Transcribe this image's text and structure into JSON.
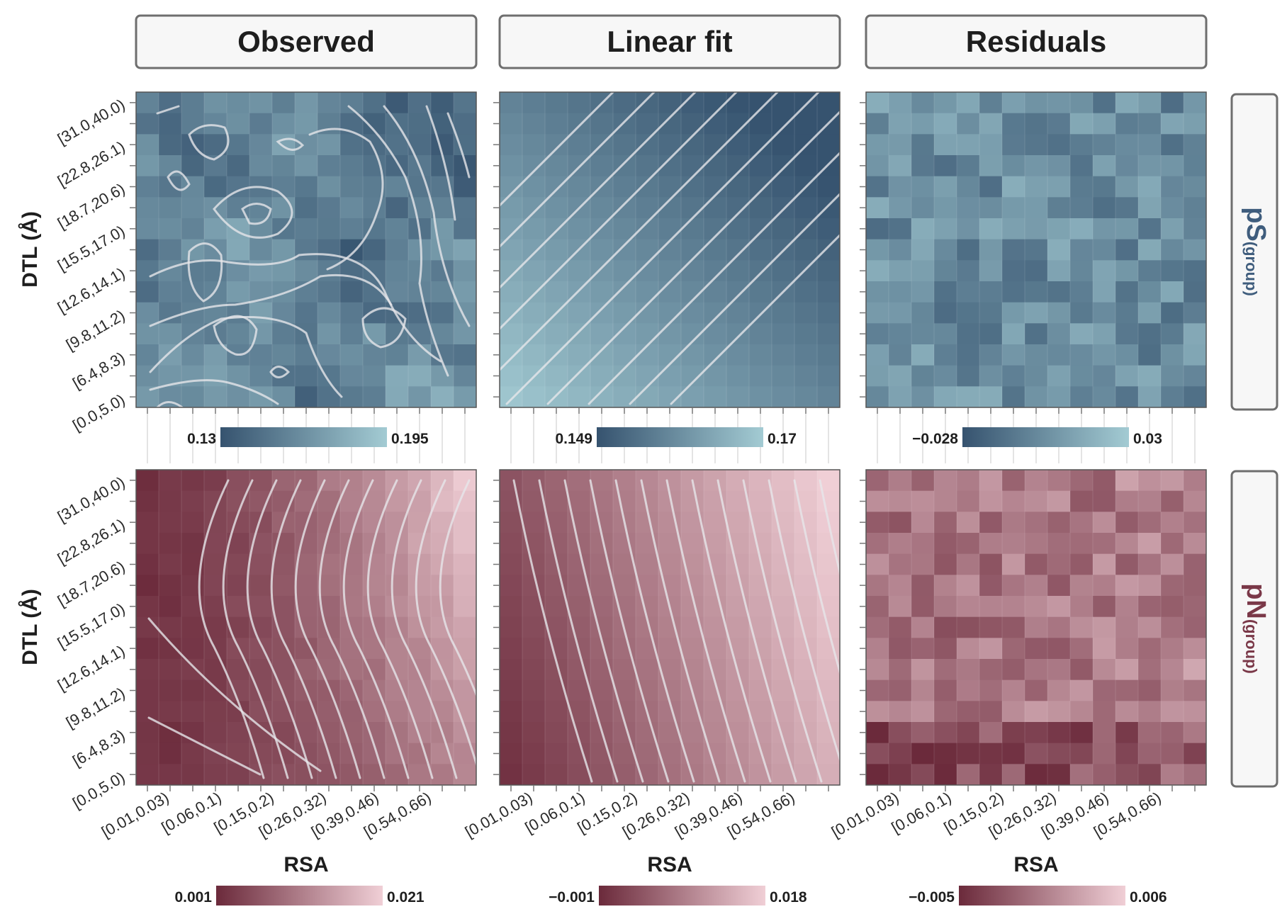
{
  "figure": {
    "column_titles": [
      "Observed",
      "Linear fit",
      "Residuals"
    ],
    "row_labels": [
      {
        "main": "pS",
        "sub": "(group)",
        "color": "#3f5d7d"
      },
      {
        "main": "pN",
        "sub": "(group)",
        "color": "#7a3848"
      }
    ],
    "ylabel": "DTL (Å)",
    "xlabel": "RSA",
    "y_ticks": [
      "[31.0,40.0)",
      "[22.8,26.1)",
      "[18.7,20.6)",
      "[15.5,17.0)",
      "[12.6,14.1)",
      "[9.8,11.2)",
      "[6.4,8.3)",
      "[0.0,5.0)"
    ],
    "x_ticks": [
      "[0.01,0.03)",
      "[0.06,0.1)",
      "[0.15,0.2)",
      "[0.26,0.32)",
      "[0.39,0.46)",
      "[0.54,0.66)"
    ],
    "colorbars": [
      {
        "min": "0.13",
        "max": "0.195"
      },
      {
        "min": "0.149",
        "max": "0.17"
      },
      {
        "min": "−0.028",
        "max": "0.03"
      },
      {
        "min": "0.001",
        "max": "0.021"
      },
      {
        "min": "−0.001",
        "max": "0.018"
      },
      {
        "min": "−0.005",
        "max": "0.006"
      }
    ],
    "palettes": {
      "blue": {
        "low": "#36536f",
        "high": "#a3cbd3"
      },
      "red": {
        "low": "#6b2a3b",
        "high": "#f0cfd6"
      }
    }
  },
  "chart_data": [
    {
      "type": "heatmap",
      "title": "Observed",
      "row": "pS(group)",
      "xlabel": "RSA",
      "ylabel": "DTL (Å)",
      "x": [
        "[0.01,0.03)",
        "[0.06,0.1)",
        "[0.15,0.2)",
        "[0.26,0.32)",
        "[0.39,0.46)",
        "[0.54,0.66)"
      ],
      "y": [
        "[0.0,5.0)",
        "[6.4,8.3)",
        "[9.8,11.2)",
        "[12.6,14.1)",
        "[15.5,17.0)",
        "[18.7,20.6)",
        "[22.8,26.1)",
        "[31.0,40.0)"
      ],
      "color_range": [
        0.13,
        0.195
      ],
      "contours": true,
      "grid": true
    },
    {
      "type": "heatmap",
      "title": "Linear fit",
      "row": "pS(group)",
      "xlabel": "RSA",
      "ylabel": "DTL (Å)",
      "color_range": [
        0.149,
        0.17
      ],
      "contours": true,
      "grid": true
    },
    {
      "type": "heatmap",
      "title": "Residuals",
      "row": "pS(group)",
      "xlabel": "RSA",
      "ylabel": "DTL (Å)",
      "color_range": [
        -0.028,
        0.03
      ],
      "contours": false,
      "grid": true
    },
    {
      "type": "heatmap",
      "title": "Observed",
      "row": "pN(group)",
      "xlabel": "RSA",
      "ylabel": "DTL (Å)",
      "color_range": [
        0.001,
        0.021
      ],
      "contours": true,
      "grid": true
    },
    {
      "type": "heatmap",
      "title": "Linear fit",
      "row": "pN(group)",
      "xlabel": "RSA",
      "ylabel": "DTL (Å)",
      "color_range": [
        -0.001,
        0.018
      ],
      "contours": true,
      "grid": true
    },
    {
      "type": "heatmap",
      "title": "Residuals",
      "row": "pN(group)",
      "xlabel": "RSA",
      "ylabel": "DTL (Å)",
      "color_range": [
        -0.005,
        0.006
      ],
      "contours": false,
      "grid": true
    }
  ]
}
